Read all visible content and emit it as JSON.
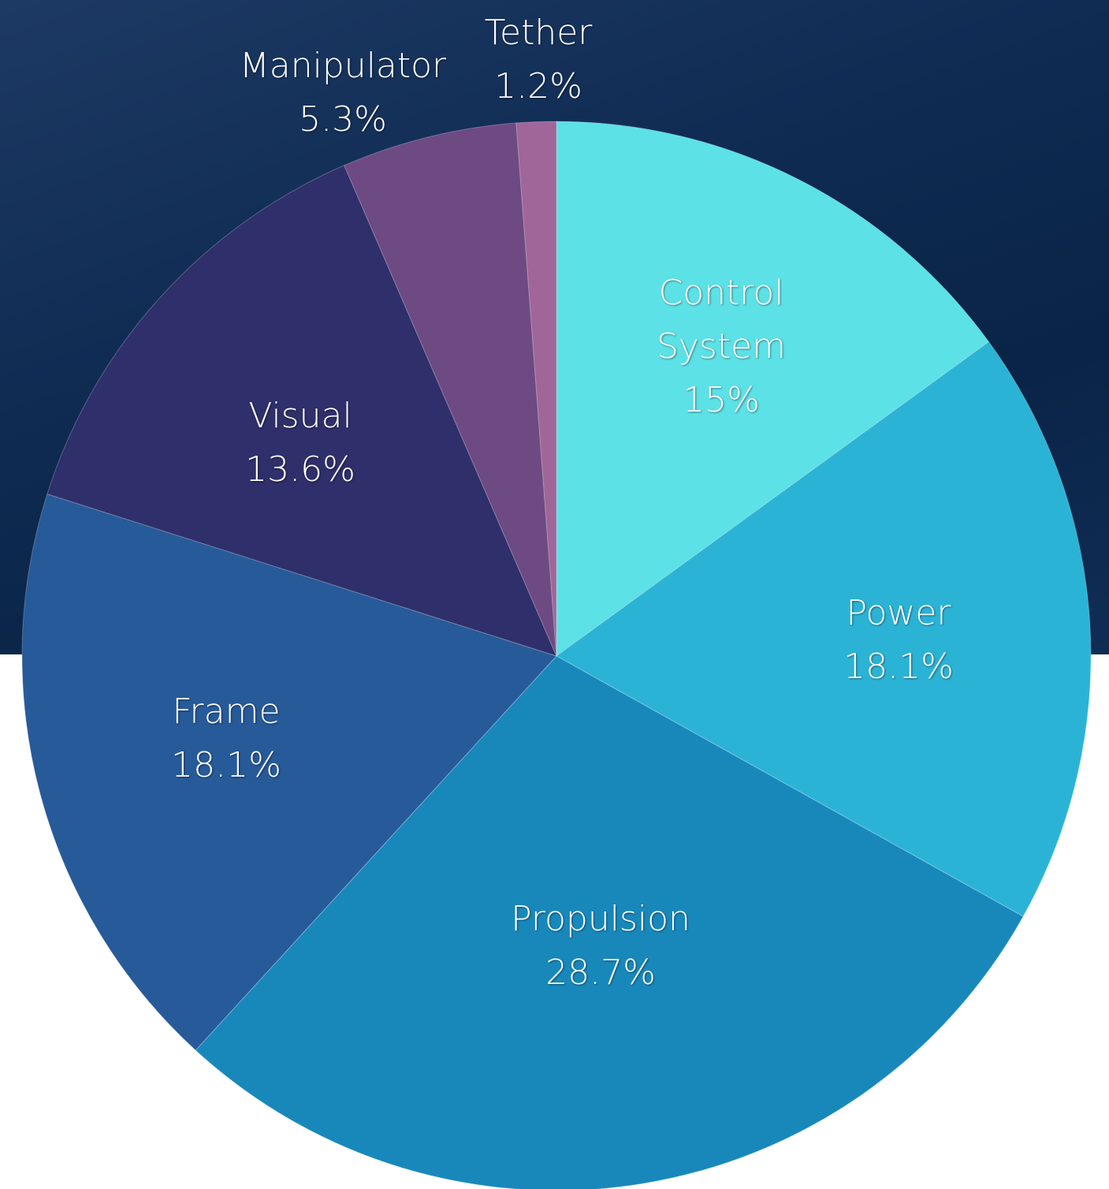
{
  "chart_data": {
    "type": "pie",
    "categories": [
      "Control System",
      "Power",
      "Propulsion",
      "Frame",
      "Visual",
      "Manipulator",
      "Tether"
    ],
    "values": [
      15,
      18.1,
      28.7,
      18.1,
      13.6,
      5.3,
      1.2
    ],
    "value_labels": [
      "15%",
      "18.1%",
      "28.7%",
      "18.1%",
      "13.6%",
      "5.3%",
      "1.2%"
    ],
    "colors": [
      "#5ce1e6",
      "#2bb3d6",
      "#1888bb",
      "#275a99",
      "#2f2f6b",
      "#6e4a83",
      "#a0669a"
    ]
  }
}
